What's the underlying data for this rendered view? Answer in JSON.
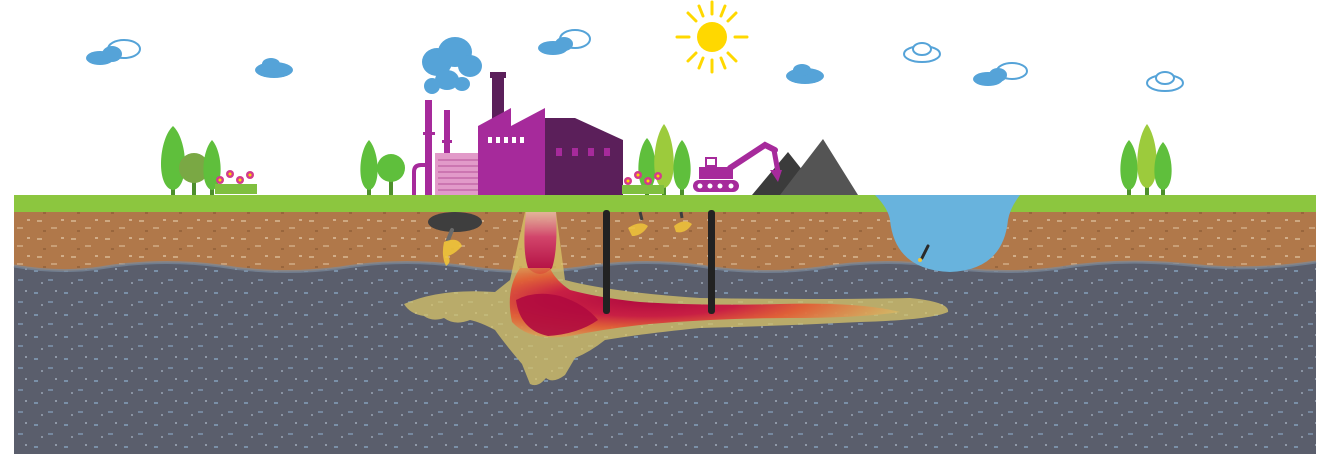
{
  "illustration": {
    "subject": "soil-and-groundwater-contamination",
    "text": []
  },
  "colors": {
    "sky": "#ffffff",
    "grass": "#8cc63f",
    "topsoil": "#b0784a",
    "aquifer": "#5a5e6c",
    "water": "#68b3dd",
    "cloud_blue": "#55a3d8",
    "sun": "#ffd800",
    "factory_magenta": "#a62a9b",
    "factory_purple": "#5b1f5a",
    "excavator": "#a62a9b",
    "spoil_heap_dark": "#3b3b3b",
    "spoil_heap_grey": "#545454",
    "well": "#222222",
    "plume_core": "#b00a3f",
    "plume_mid": "#e6552f",
    "plume_edge": "#d9c56a",
    "leak_yellow": "#f0c43a",
    "tree_green": "#5fbf3c",
    "tree_light": "#9ccb3c",
    "flower_pink": "#d23c8c"
  },
  "icons": [
    "cloud-icon",
    "sun-icon",
    "tree-icon",
    "flower-icon",
    "factory-icon",
    "chimney-smoke-icon",
    "excavator-icon",
    "spoil-heap-icon",
    "monitoring-well-icon",
    "pond-icon",
    "leak-drop-icon",
    "contamination-plume-icon"
  ]
}
